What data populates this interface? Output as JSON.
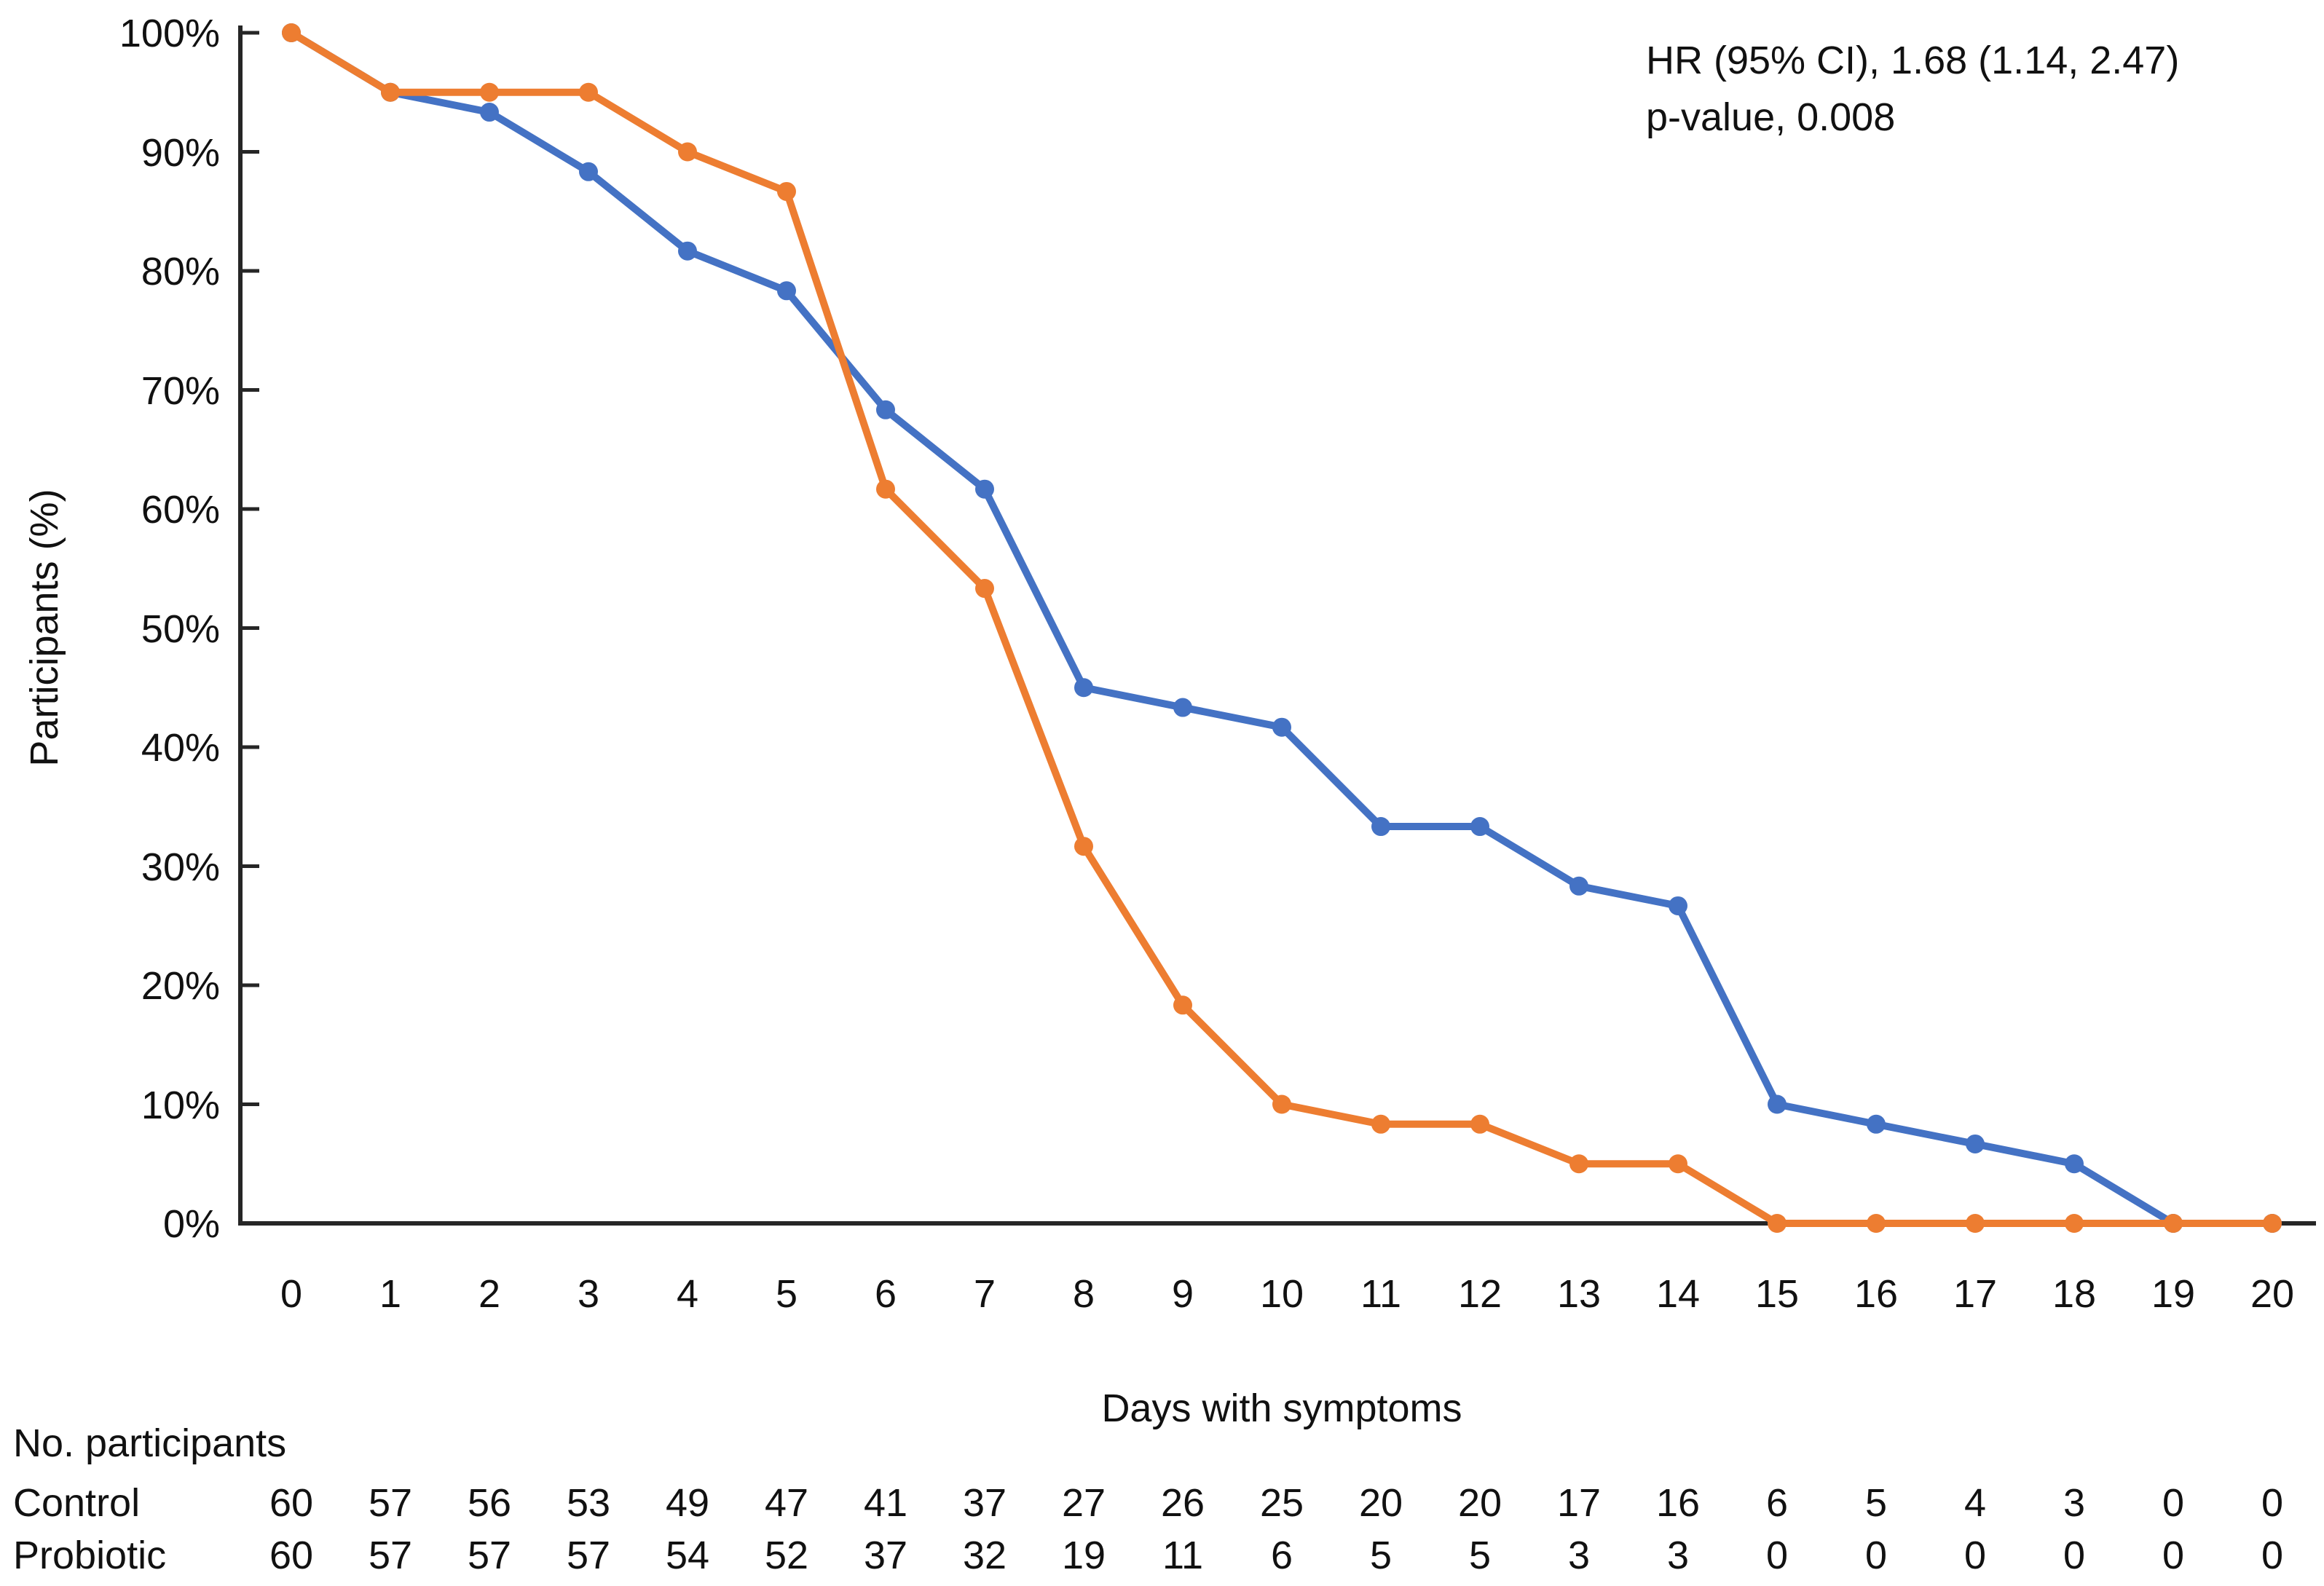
{
  "annotation": {
    "line1": "HR (95% CI), 1.68 (1.14, 2.47)",
    "line2": "p-value, 0.008"
  },
  "axes": {
    "x_title": "Days with symptoms",
    "y_title": "Participants (%)",
    "x_tick_labels": [
      "0",
      "1",
      "2",
      "3",
      "4",
      "5",
      "6",
      "7",
      "8",
      "9",
      "10",
      "11",
      "12",
      "13",
      "14",
      "15",
      "16",
      "17",
      "18",
      "19",
      "20"
    ],
    "y_tick_labels": [
      "100%",
      "90%",
      "80%",
      "70%",
      "60%",
      "50%",
      "40%",
      "30%",
      "20%",
      "10%",
      "0%"
    ],
    "y_tick_values": [
      100,
      90,
      80,
      70,
      60,
      50,
      40,
      30,
      20,
      10,
      0
    ]
  },
  "chart_data": {
    "type": "line",
    "title": "",
    "xlabel": "Days with symptoms",
    "ylabel": "Participants (%)",
    "x": [
      0,
      1,
      2,
      3,
      4,
      5,
      6,
      7,
      8,
      9,
      10,
      11,
      12,
      13,
      14,
      15,
      16,
      17,
      18,
      19,
      20
    ],
    "xlim": [
      0,
      20
    ],
    "ylim": [
      0,
      100
    ],
    "grid": false,
    "legend": "none",
    "annotations": [
      "HR (95% CI), 1.68 (1.14, 2.47)",
      "p-value, 0.008"
    ],
    "series": [
      {
        "name": "Control",
        "color": "#4472C4",
        "marker": "circle",
        "values_pct": [
          100,
          95,
          93.33,
          88.33,
          81.67,
          78.33,
          68.33,
          61.67,
          45,
          43.33,
          41.67,
          33.33,
          33.33,
          28.33,
          26.67,
          10,
          8.33,
          6.67,
          5,
          0,
          0
        ]
      },
      {
        "name": "Probiotic",
        "color": "#ED7D31",
        "marker": "circle",
        "values_pct": [
          100,
          95,
          95,
          95,
          90,
          86.67,
          61.67,
          53.33,
          31.67,
          18.33,
          10,
          8.33,
          8.33,
          5,
          5,
          0,
          0,
          0,
          0,
          0,
          0
        ]
      }
    ]
  },
  "risk_table": {
    "header": "No. participants",
    "rows": [
      {
        "label": "Control",
        "counts": [
          "60",
          "57",
          "56",
          "53",
          "49",
          "47",
          "41",
          "37",
          "27",
          "26",
          "25",
          "20",
          "20",
          "17",
          "16",
          "6",
          "5",
          "4",
          "3",
          "0",
          "0"
        ]
      },
      {
        "label": "Probiotic",
        "counts": [
          "60",
          "57",
          "57",
          "57",
          "54",
          "52",
          "37",
          "32",
          "19",
          "11",
          "6",
          "5",
          "5",
          "3",
          "3",
          "0",
          "0",
          "0",
          "0",
          "0",
          "0"
        ]
      }
    ]
  },
  "colors": {
    "control": "#4472C4",
    "probiotic": "#ED7D31",
    "axis": "#262626",
    "text": "#111111",
    "background": "#ffffff"
  }
}
